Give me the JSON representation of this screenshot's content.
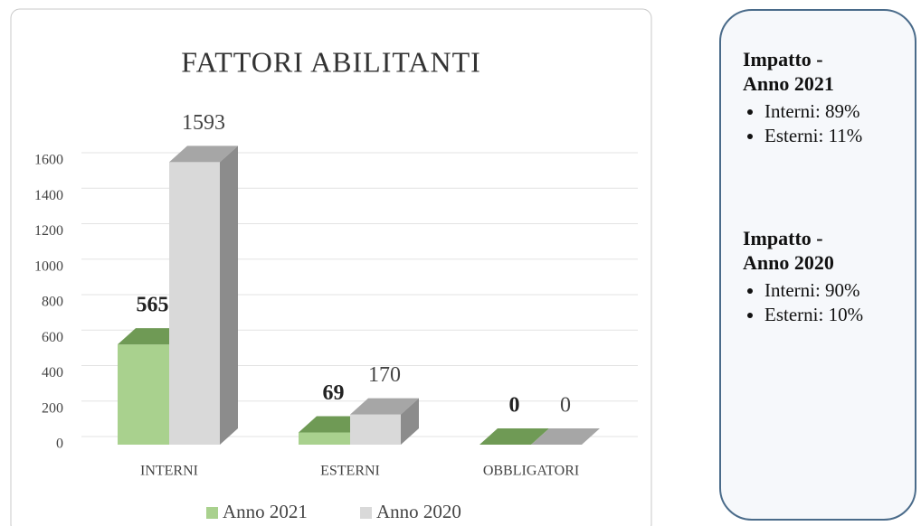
{
  "chart_data": {
    "type": "bar",
    "title": "FATTORI ABILITANTI",
    "categories": [
      "INTERNI",
      "ESTERNI",
      "OBBLIGATORI"
    ],
    "series": [
      {
        "name": "Anno 2021",
        "color": "#a9d18e",
        "values": [
          565,
          69,
          0
        ]
      },
      {
        "name": "Anno 2020",
        "color": "#d9d9d9",
        "values": [
          1593,
          170,
          0
        ]
      }
    ],
    "ylim": [
      0,
      1600
    ],
    "yticks": [
      0,
      200,
      400,
      600,
      800,
      1000,
      1200,
      1400,
      1600
    ],
    "grid": true
  },
  "panel": [
    {
      "heading": "Impatto - Anno 2021",
      "items": [
        "Interni: 89%",
        "Esterni: 11%"
      ]
    },
    {
      "heading": "Impatto - Anno 2020",
      "items": [
        "Interni: 90%",
        "Esterni: 10%"
      ]
    }
  ]
}
